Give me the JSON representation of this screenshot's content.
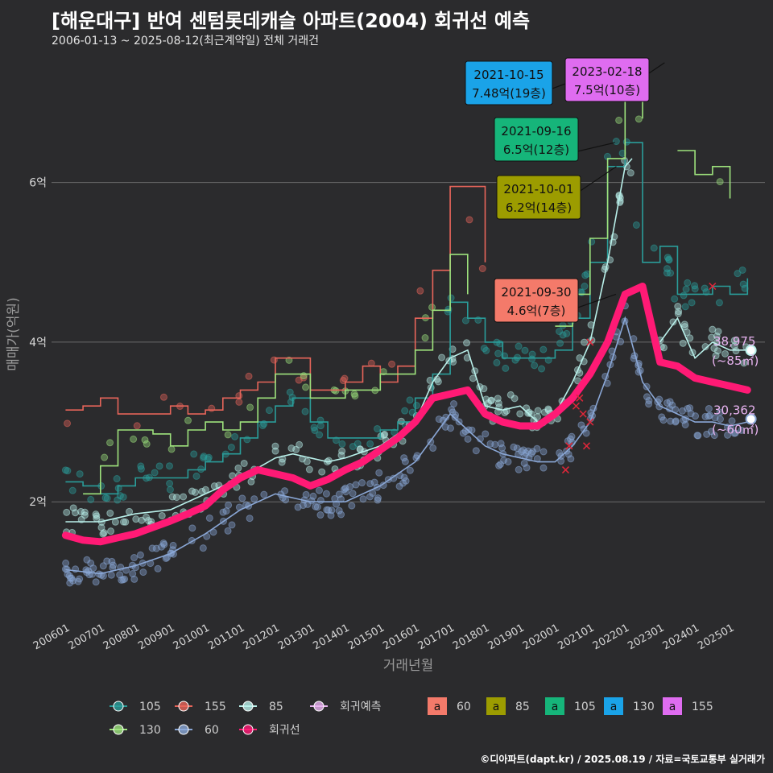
{
  "title": "[해운대구] 반여 센텀롯데캐슬 아파트(2004) 회귀선 예측",
  "subtitle": "2006-01-13 ~ 2025-08-12(최근계약일) 전체 거래건",
  "caption": "©디아파트(dapt.kr) / 2025.08.19 / 자료=국토교통부 실거래가",
  "colors": {
    "background": "#2b2b2d",
    "grid": "#6b6b6b",
    "s105": "#2a9d9a",
    "s155": "#e8655a",
    "s85": "#b9f0ea",
    "s130": "#9ee37d",
    "s60": "#8aa7d6",
    "regression": "#ff1a75",
    "forecast": "#e8b3f0"
  },
  "chart_data": {
    "type": "line",
    "xlabel": "거래년월",
    "ylabel": "매매가(억원)",
    "xlim": [
      2005.6,
      2026.0
    ],
    "ylim": [
      0.6,
      7.6
    ],
    "grid": true,
    "x_tick_labels": [
      "200601",
      "200701",
      "200801",
      "200901",
      "201001",
      "201101",
      "201201",
      "201301",
      "201401",
      "201501",
      "201601",
      "201701",
      "201801",
      "201901",
      "202001",
      "202101",
      "202201",
      "202301",
      "202401",
      "202501"
    ],
    "x_tick_values": [
      2006,
      2007,
      2008,
      2009,
      2010,
      2011,
      2012,
      2013,
      2014,
      2015,
      2016,
      2017,
      2018,
      2019,
      2020,
      2021,
      2022,
      2023,
      2024,
      2025
    ],
    "y_tick_labels": [
      "2억",
      "4억",
      "6억"
    ],
    "y_tick_values": [
      2,
      4,
      6
    ],
    "series": [
      {
        "name": "105",
        "kind": "step",
        "x": [
          2006.0,
          2006.5,
          2007.0,
          2007.5,
          2008.0,
          2008.5,
          2009.0,
          2009.5,
          2010.0,
          2010.5,
          2011.0,
          2011.5,
          2012.0,
          2012.5,
          2013.0,
          2013.5,
          2014.0,
          2014.5,
          2015.0,
          2015.5,
          2016.0,
          2016.5,
          2017.0,
          2017.5,
          2018.0,
          2018.5,
          2019.0,
          2019.5,
          2020.0,
          2020.5,
          2021.0,
          2021.5,
          2022.0,
          2022.5,
          2023.0,
          2023.5,
          2024.0,
          2024.5,
          2025.0,
          2025.5
        ],
        "values": [
          2.25,
          2.2,
          2.1,
          2.2,
          2.3,
          2.3,
          2.3,
          2.4,
          2.5,
          2.6,
          2.8,
          3.0,
          3.2,
          3.3,
          3.0,
          2.8,
          2.8,
          2.8,
          2.9,
          3.0,
          3.3,
          3.6,
          4.5,
          4.3,
          4.0,
          3.8,
          3.8,
          3.8,
          3.9,
          4.3,
          5.0,
          6.2,
          6.5,
          5.0,
          5.2,
          4.6,
          4.6,
          4.7,
          4.6,
          4.8
        ]
      },
      {
        "name": "155",
        "kind": "step",
        "x": [
          2006.0,
          2006.5,
          2007.0,
          2007.5,
          2008.0,
          2008.5,
          2009.0,
          2009.5,
          2010.0,
          2010.5,
          2011.0,
          2011.5,
          2012.0,
          2013.0,
          2014.0,
          2014.5,
          2015.0,
          2015.5,
          2016.0,
          2016.5,
          2017.0,
          2018.0
        ],
        "values": [
          3.15,
          3.2,
          3.3,
          3.1,
          3.1,
          3.1,
          3.2,
          3.1,
          3.15,
          3.3,
          3.4,
          3.5,
          3.8,
          3.4,
          3.5,
          3.7,
          3.5,
          3.7,
          4.3,
          4.9,
          5.95,
          5.0
        ]
      },
      {
        "name": "85",
        "kind": "line",
        "x": [
          2006.0,
          2007.0,
          2008.0,
          2009.0,
          2010.0,
          2011.0,
          2012.0,
          2012.5,
          2013.0,
          2013.5,
          2014.0,
          2015.0,
          2016.0,
          2016.5,
          2017.0,
          2017.5,
          2018.0,
          2018.5,
          2019.0,
          2019.5,
          2020.0,
          2020.5,
          2021.0,
          2021.5,
          2022.0,
          2022.2,
          2022.5,
          2022.8,
          2023.0,
          2023.5,
          2024.0,
          2024.5,
          2025.0,
          2025.5
        ],
        "values": [
          1.75,
          1.75,
          1.85,
          1.9,
          2.1,
          2.3,
          2.55,
          2.6,
          2.55,
          2.5,
          2.55,
          2.7,
          3.0,
          3.5,
          3.8,
          3.9,
          3.2,
          3.15,
          3.2,
          3.0,
          3.1,
          3.5,
          4.0,
          5.0,
          6.2,
          6.3,
          null,
          null,
          4.0,
          4.3,
          3.8,
          4.0,
          3.9,
          3.9
        ]
      },
      {
        "name": "130",
        "kind": "step",
        "x": [
          2006.0,
          2006.5,
          2007.0,
          2007.5,
          2008.0,
          2008.5,
          2009.0,
          2009.5,
          2010.0,
          2010.5,
          2011.0,
          2011.5,
          2012.0,
          2012.5,
          2013.0,
          2014.0,
          2015.0,
          2016.0,
          2016.5,
          2017.0,
          2017.5,
          2018.0,
          2019.0,
          2020.0,
          2020.5,
          2021.0,
          2021.5,
          2022.0,
          2022.5,
          2023.0,
          2023.5,
          2024.0,
          2024.5,
          2025.0
        ],
        "values": [
          null,
          2.1,
          2.45,
          2.9,
          2.9,
          2.85,
          2.7,
          2.9,
          3.0,
          2.9,
          3.0,
          3.3,
          3.6,
          3.6,
          3.3,
          3.4,
          3.6,
          3.9,
          4.4,
          5.1,
          4.6,
          null,
          null,
          4.2,
          4.6,
          5.3,
          6.3,
          7.3,
          6.8,
          null,
          6.4,
          6.1,
          6.2,
          5.8
        ]
      },
      {
        "name": "60",
        "kind": "line",
        "x": [
          2006.0,
          2007.0,
          2008.0,
          2009.0,
          2010.0,
          2011.0,
          2012.0,
          2013.0,
          2014.0,
          2015.0,
          2016.0,
          2016.5,
          2017.0,
          2017.5,
          2018.0,
          2018.5,
          2019.0,
          2019.5,
          2020.0,
          2020.5,
          2021.0,
          2021.5,
          2022.0,
          2022.5,
          2023.0,
          2023.5,
          2024.0,
          2024.5,
          2025.0,
          2025.5
        ],
        "values": [
          1.15,
          1.1,
          1.2,
          1.35,
          1.6,
          1.9,
          2.1,
          2.0,
          2.0,
          2.2,
          2.5,
          2.8,
          3.1,
          2.9,
          2.7,
          2.6,
          2.55,
          2.5,
          2.5,
          2.7,
          3.0,
          3.6,
          4.3,
          3.5,
          3.2,
          3.1,
          3.0,
          3.0,
          2.95,
          3.0
        ]
      },
      {
        "name": "회귀선",
        "kind": "regression",
        "x": [
          2006.0,
          2006.5,
          2007.0,
          2007.5,
          2008.0,
          2008.5,
          2009.0,
          2009.5,
          2010.0,
          2010.5,
          2011.0,
          2011.5,
          2012.0,
          2012.5,
          2013.0,
          2013.5,
          2014.0,
          2014.5,
          2015.0,
          2015.5,
          2016.0,
          2016.5,
          2017.0,
          2017.5,
          2018.0,
          2018.5,
          2019.0,
          2019.5,
          2020.0,
          2020.5,
          2021.0,
          2021.5,
          2022.0,
          2022.5,
          2023.0,
          2023.5,
          2024.0,
          2024.5,
          2025.0,
          2025.5
        ],
        "values": [
          1.58,
          1.52,
          1.5,
          1.55,
          1.6,
          1.68,
          1.76,
          1.85,
          1.95,
          2.15,
          2.3,
          2.4,
          2.35,
          2.3,
          2.2,
          2.28,
          2.4,
          2.5,
          2.65,
          2.8,
          3.0,
          3.3,
          3.35,
          3.4,
          3.1,
          3.0,
          2.95,
          2.95,
          3.1,
          3.3,
          3.6,
          4.0,
          4.6,
          4.7,
          3.75,
          3.7,
          3.55,
          3.5,
          3.45,
          3.4
        ]
      }
    ],
    "forecast_points": [
      {
        "size": "85",
        "x": 2025.6,
        "y": 3.8975,
        "label_value": "38,975",
        "label_area": "(~85㎡)"
      },
      {
        "size": "60",
        "x": 2025.6,
        "y": 3.0362,
        "label_value": "30,362",
        "label_area": "(~60㎡)"
      }
    ],
    "annotations": [
      {
        "date": "2021-10-15",
        "text": "7.48억(19층)",
        "size": "130",
        "x": 2021.79,
        "y": 7.48,
        "bg": "#1aa3e8"
      },
      {
        "date": "2023-02-18",
        "text": "7.5억(10층)",
        "size": "155",
        "x": 2023.13,
        "y": 7.5,
        "bg": "#df6cf0"
      },
      {
        "date": "2021-09-16",
        "text": "6.5억(12층)",
        "size": "105",
        "x": 2021.71,
        "y": 6.5,
        "bg": "#16b57a"
      },
      {
        "date": "2021-10-01",
        "text": "6.2억(14층)",
        "size": "85",
        "x": 2021.75,
        "y": 6.2,
        "bg": "#9c9c00"
      },
      {
        "date": "2021-09-30",
        "text": "4.6억(7층)",
        "size": "60",
        "x": 2021.74,
        "y": 4.6,
        "bg": "#f47a6a"
      }
    ],
    "legend": [
      {
        "key": "105",
        "label": "105"
      },
      {
        "key": "155",
        "label": "155"
      },
      {
        "key": "85",
        "label": "85"
      },
      {
        "key": "130",
        "label": "130"
      },
      {
        "key": "60",
        "label": "60"
      },
      {
        "key": "regression",
        "label": "회귀선"
      },
      {
        "key": "forecast",
        "label": "회귀예측"
      }
    ],
    "legend_boxes": [
      {
        "label": "60",
        "bg": "#f47a6a",
        "glyph": "a"
      },
      {
        "label": "85",
        "bg": "#9c9c00",
        "glyph": "a"
      },
      {
        "label": "105",
        "bg": "#16b57a",
        "glyph": "a"
      },
      {
        "label": "130",
        "bg": "#1aa3e8",
        "glyph": "a"
      },
      {
        "label": "155",
        "bg": "#df6cf0",
        "glyph": "a"
      }
    ]
  }
}
